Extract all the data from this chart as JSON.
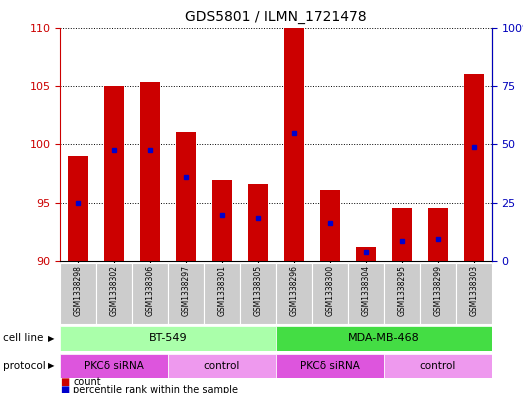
{
  "title": "GDS5801 / ILMN_1721478",
  "samples": [
    "GSM1338298",
    "GSM1338302",
    "GSM1338306",
    "GSM1338297",
    "GSM1338301",
    "GSM1338305",
    "GSM1338296",
    "GSM1338300",
    "GSM1338304",
    "GSM1338295",
    "GSM1338299",
    "GSM1338303"
  ],
  "red_heights": [
    99.0,
    105.0,
    105.3,
    101.1,
    97.0,
    96.6,
    110.0,
    96.1,
    91.2,
    94.6,
    94.6,
    106.0
  ],
  "blue_positions": [
    95.0,
    99.5,
    99.5,
    97.2,
    94.0,
    93.7,
    101.0,
    93.3,
    90.8,
    91.7,
    91.9,
    99.8
  ],
  "ylim_left": [
    90,
    110
  ],
  "yticks_left": [
    90,
    95,
    100,
    105,
    110
  ],
  "yticks_right": [
    0,
    25,
    50,
    75,
    100
  ],
  "ylim_right": [
    0,
    100
  ],
  "cell_line_groups": [
    {
      "label": "BT-549",
      "start": 0,
      "end": 6,
      "color": "#aaffaa"
    },
    {
      "label": "MDA-MB-468",
      "start": 6,
      "end": 12,
      "color": "#44dd44"
    }
  ],
  "protocol_groups": [
    {
      "label": "PKCδ siRNA",
      "start": 0,
      "end": 3,
      "color": "#dd55dd"
    },
    {
      "label": "control",
      "start": 3,
      "end": 6,
      "color": "#ee99ee"
    },
    {
      "label": "PKCδ siRNA",
      "start": 6,
      "end": 9,
      "color": "#dd55dd"
    },
    {
      "label": "control",
      "start": 9,
      "end": 12,
      "color": "#ee99ee"
    }
  ],
  "bar_color": "#cc0000",
  "blue_color": "#0000cc",
  "left_axis_color": "#cc0000",
  "right_axis_color": "#0000bb",
  "bar_width": 0.55,
  "base_value": 90
}
